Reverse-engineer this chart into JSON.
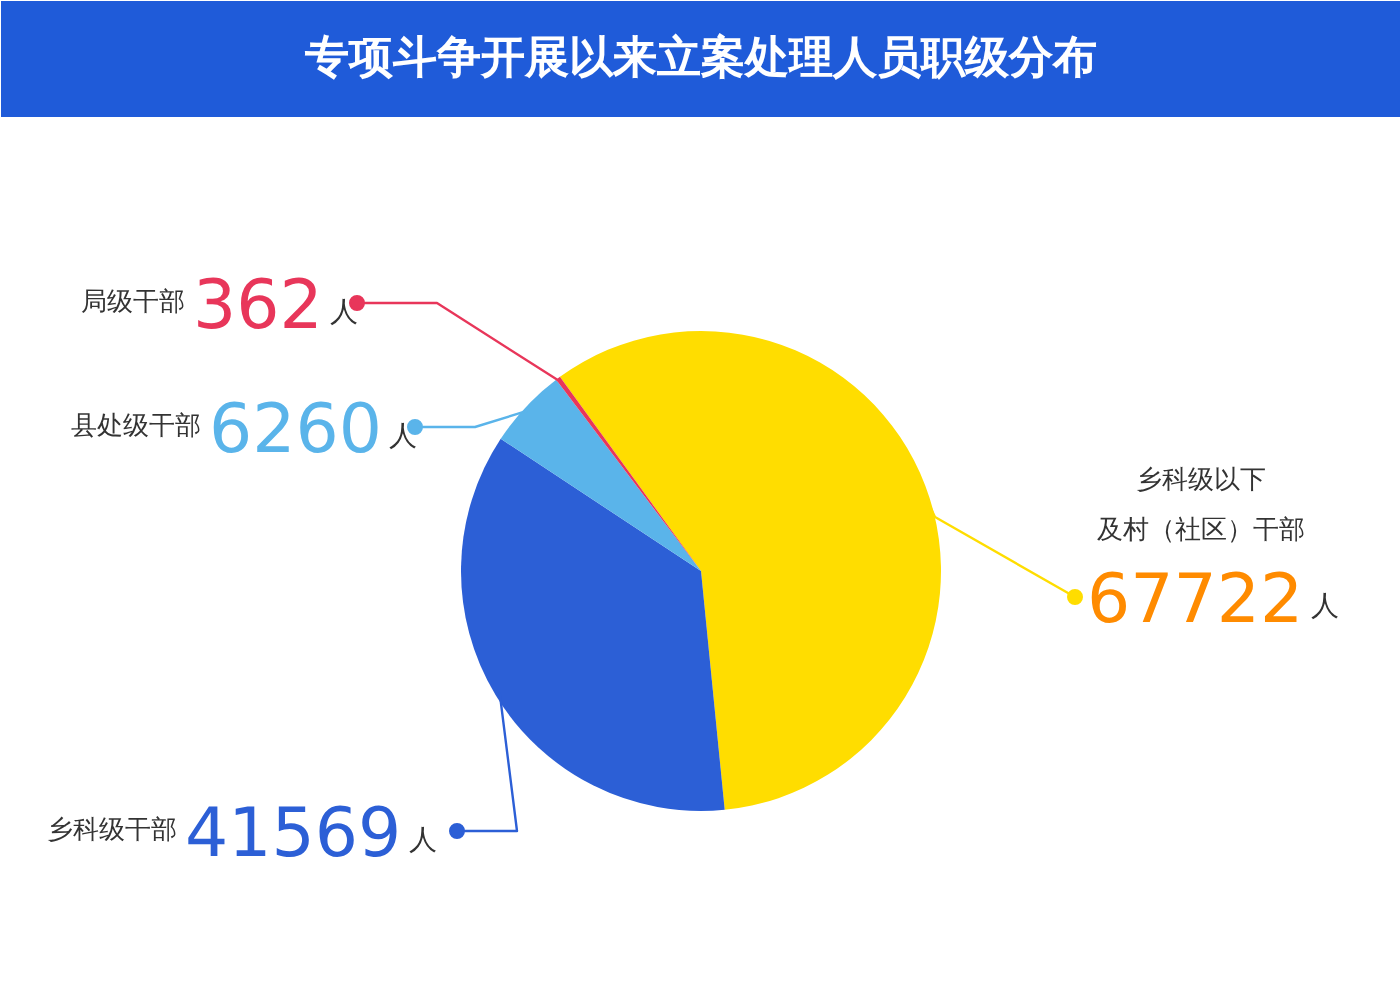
{
  "chart_data": {
    "type": "pie",
    "title": "专项斗争开展以来立案处理人员职级分布",
    "categories": [
      "乡科级以下及村（社区）干部",
      "乡科级干部",
      "县处级干部",
      "局级干部"
    ],
    "values": [
      67722,
      41569,
      6260,
      362
    ],
    "colors": [
      "#ffdd00",
      "#2c5fd6",
      "#5ab4ea",
      "#e8365a"
    ],
    "value_labels": [
      "67722人",
      "41569人",
      "6260人",
      "362人"
    ]
  }
}
